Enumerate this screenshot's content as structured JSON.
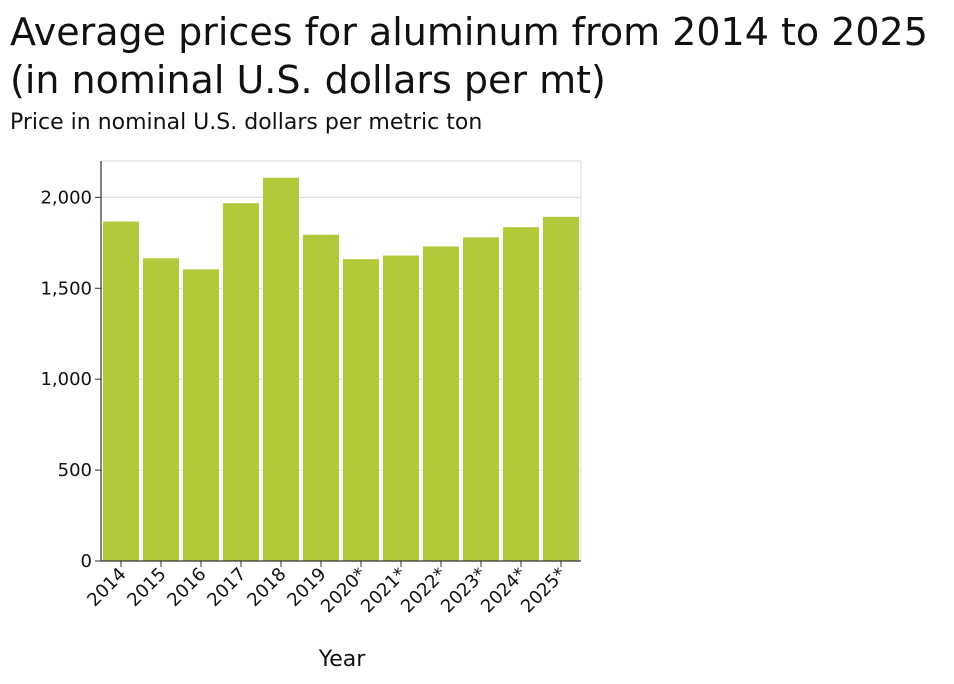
{
  "chart_data": {
    "type": "bar",
    "title": "Average prices for aluminum from 2014 to 2025 (in nominal U.S. dollars per mt)",
    "ylabel": "Price in nominal U.S. dollars per metric ton",
    "xlabel": "Year",
    "categories": [
      "2014",
      "2015",
      "2016",
      "2017",
      "2018",
      "2019",
      "2020*",
      "2021*",
      "2022*",
      "2023*",
      "2024*",
      "2025*"
    ],
    "values": [
      1867,
      1665,
      1604,
      1968,
      2108,
      1794,
      1660,
      1680,
      1730,
      1780,
      1836,
      1893
    ],
    "ylim": [
      0,
      2200
    ],
    "yticks": [
      0,
      500,
      1000,
      1500,
      2000
    ],
    "ytick_labels": [
      "0",
      "500",
      "1,000",
      "1,500",
      "2,000"
    ],
    "grid": true,
    "bar_color": "#b0c93b"
  }
}
